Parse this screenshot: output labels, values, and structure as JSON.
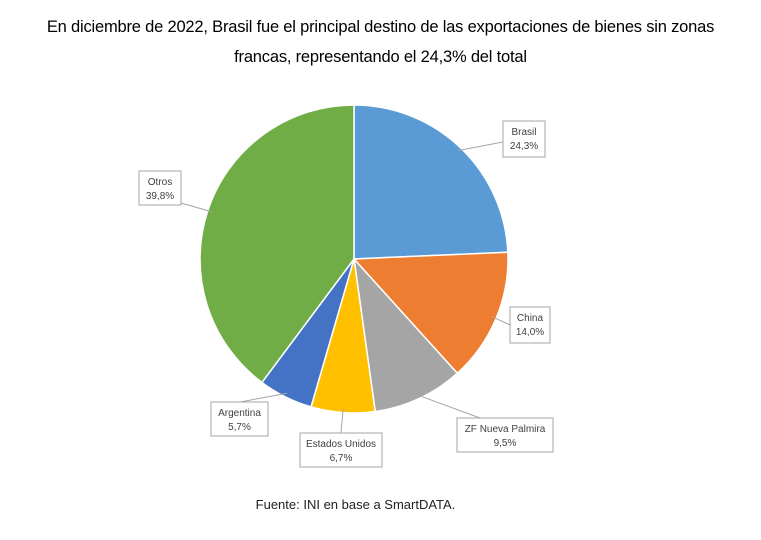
{
  "title_line1": "En diciembre de 2022, Brasil fue el principal destino de las exportaciones de bienes sin zonas",
  "title_line2": "francas, representando el 24,3% del total",
  "source": "Fuente: INI en base a SmartDATA.",
  "chart_data": {
    "type": "pie",
    "title": "En diciembre de 2022, Brasil fue el principal destino de las exportaciones de bienes sin zonas francas, representando el 24,3% del total",
    "slices": [
      {
        "label": "Brasil",
        "value": 24.3,
        "display": "24,3%",
        "color": "#5b9bd5"
      },
      {
        "label": "China",
        "value": 14.0,
        "display": "14,0%",
        "color": "#ed7d31"
      },
      {
        "label": "ZF Nueva Palmira",
        "value": 9.5,
        "display": "9,5%",
        "color": "#a5a5a5"
      },
      {
        "label": "Estados Unidos",
        "value": 6.7,
        "display": "6,7%",
        "color": "#ffc000"
      },
      {
        "label": "Argentina",
        "value": 5.7,
        "display": "5,7%",
        "color": "#4472c4"
      },
      {
        "label": "Otros",
        "value": 39.8,
        "display": "39,8%",
        "color": "#70ad47"
      }
    ],
    "start_angle": "12 o'clock",
    "direction": "clockwise",
    "legend": "none",
    "data_labels": "callout boxes with category name and percentage"
  }
}
